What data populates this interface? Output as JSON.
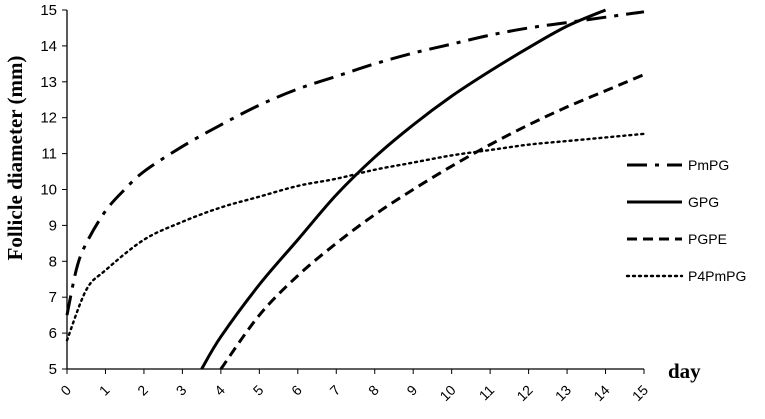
{
  "chart_data": {
    "type": "line",
    "xlabel": "day",
    "ylabel": "Follicle diameter (mm)",
    "xlim": [
      0,
      15
    ],
    "ylim": [
      5,
      15
    ],
    "xticks": [
      "0",
      "1",
      "2",
      "3",
      "4",
      "5",
      "6",
      "7",
      "8",
      "9",
      "10",
      "11",
      "12",
      "13",
      "14",
      "15"
    ],
    "yticks": [
      "5",
      "6",
      "7",
      "8",
      "9",
      "10",
      "11",
      "12",
      "13",
      "14",
      "15"
    ],
    "grid": false,
    "legend_position": "right",
    "series": [
      {
        "name": "PmPG",
        "style": "dash-dot",
        "x": [
          0,
          0.25,
          0.5,
          1,
          1.5,
          2,
          3,
          4,
          5,
          6,
          7,
          8,
          9,
          10,
          11,
          12,
          13,
          14,
          15
        ],
        "y": [
          6.5,
          7.8,
          8.5,
          9.4,
          10.0,
          10.5,
          11.2,
          11.8,
          12.35,
          12.8,
          13.15,
          13.5,
          13.8,
          14.05,
          14.3,
          14.5,
          14.65,
          14.8,
          14.95
        ]
      },
      {
        "name": "GPG",
        "style": "solid",
        "x": [
          3.5,
          4,
          5,
          6,
          7,
          8,
          9,
          10,
          11,
          12,
          13,
          14
        ],
        "y": [
          5.0,
          5.9,
          7.35,
          8.6,
          9.85,
          10.9,
          11.8,
          12.6,
          13.3,
          13.95,
          14.55,
          15.0
        ]
      },
      {
        "name": "PGPE",
        "style": "dashed",
        "x": [
          4,
          5,
          6,
          7,
          8,
          9,
          10,
          11,
          12,
          13,
          14,
          15
        ],
        "y": [
          5.0,
          6.5,
          7.6,
          8.5,
          9.3,
          10.0,
          10.65,
          11.25,
          11.8,
          12.3,
          12.75,
          13.2
        ]
      },
      {
        "name": "P4PmPG",
        "style": "dotted",
        "x": [
          0,
          0.5,
          1,
          2,
          3,
          4,
          5,
          6,
          7,
          8,
          9,
          10,
          11,
          12,
          13,
          14,
          15
        ],
        "y": [
          5.8,
          7.2,
          7.75,
          8.6,
          9.1,
          9.5,
          9.8,
          10.1,
          10.3,
          10.55,
          10.75,
          10.95,
          11.1,
          11.25,
          11.35,
          11.45,
          11.55
        ]
      }
    ]
  }
}
